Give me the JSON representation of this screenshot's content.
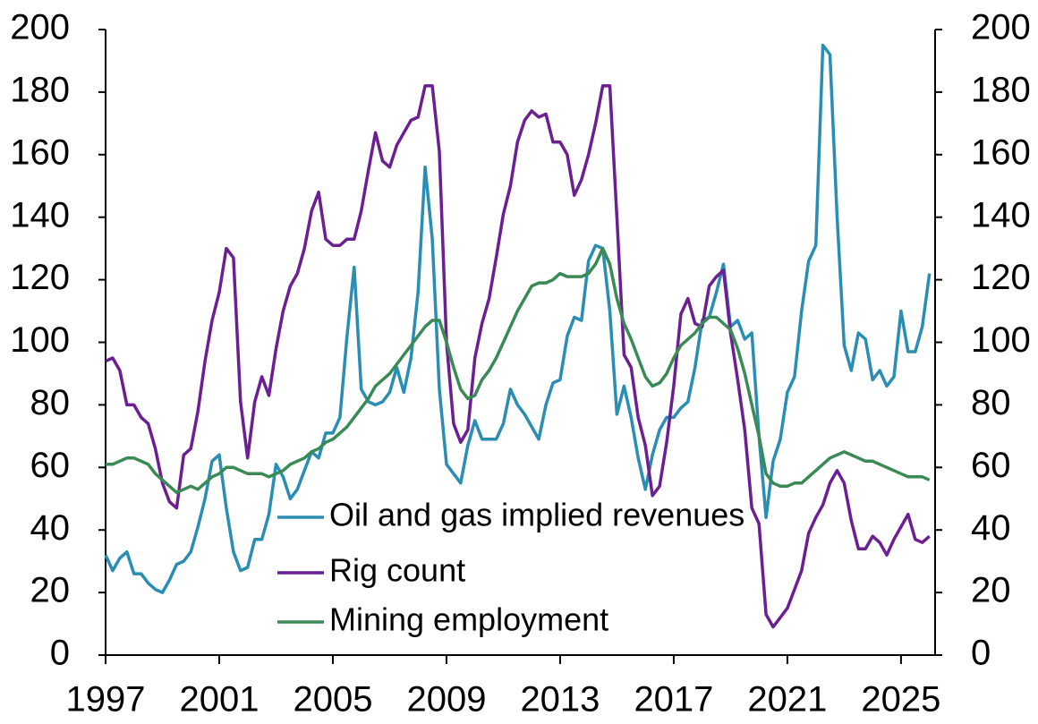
{
  "chart_data": {
    "type": "line",
    "x": [
      1997,
      1997.25,
      1997.5,
      1997.75,
      1998,
      1998.25,
      1998.5,
      1998.75,
      1999,
      1999.25,
      1999.5,
      1999.75,
      2000,
      2000.25,
      2000.5,
      2000.75,
      2001,
      2001.25,
      2001.5,
      2001.75,
      2002,
      2002.25,
      2002.5,
      2002.75,
      2003,
      2003.25,
      2003.5,
      2003.75,
      2004,
      2004.25,
      2004.5,
      2004.75,
      2005,
      2005.25,
      2005.5,
      2005.75,
      2006,
      2006.25,
      2006.5,
      2006.75,
      2007,
      2007.25,
      2007.5,
      2007.75,
      2008,
      2008.25,
      2008.5,
      2008.75,
      2009,
      2009.25,
      2009.5,
      2009.75,
      2010,
      2010.25,
      2010.5,
      2010.75,
      2011,
      2011.25,
      2011.5,
      2011.75,
      2012,
      2012.25,
      2012.5,
      2012.75,
      2013,
      2013.25,
      2013.5,
      2013.75,
      2014,
      2014.25,
      2014.5,
      2014.75,
      2015,
      2015.25,
      2015.5,
      2015.75,
      2016,
      2016.25,
      2016.5,
      2016.75,
      2017,
      2017.25,
      2017.5,
      2017.75,
      2018,
      2018.25,
      2018.5,
      2018.75,
      2019,
      2019.25,
      2019.5,
      2019.75,
      2020,
      2020.25,
      2020.5,
      2020.75,
      2021,
      2021.25,
      2021.5,
      2021.75,
      2022,
      2022.25,
      2022.5,
      2022.75,
      2023,
      2023.25,
      2023.5,
      2023.75,
      2024,
      2024.25,
      2024.5,
      2024.75,
      2025,
      2025.25,
      2025.5,
      2025.75,
      2026
    ],
    "series": [
      {
        "name": "Oil and gas implied revenues",
        "color": "#2a8db3",
        "values": [
          32,
          27,
          31,
          33,
          26,
          26,
          23,
          21,
          20,
          24,
          29,
          30,
          33,
          41,
          50,
          62,
          64,
          47,
          33,
          27,
          28,
          37,
          37,
          45,
          61,
          57,
          50,
          53,
          59,
          65,
          63,
          71,
          71,
          76,
          102,
          124,
          85,
          81,
          80,
          81,
          84,
          92,
          84,
          95,
          116,
          156,
          133,
          85,
          61,
          58,
          55,
          67,
          75,
          69,
          69,
          69,
          74,
          85,
          80,
          77,
          73,
          69,
          80,
          87,
          88,
          102,
          108,
          107,
          126,
          131,
          130,
          110,
          77,
          86,
          76,
          63,
          53,
          64,
          72,
          76,
          76,
          79,
          81,
          92,
          107,
          108,
          116,
          125,
          105,
          107,
          101,
          103,
          70,
          44,
          62,
          69,
          84,
          89,
          110,
          126,
          131,
          195,
          192,
          140,
          99,
          91,
          103,
          101,
          88,
          91,
          86,
          89,
          110,
          97,
          97,
          105,
          122
        ]
      },
      {
        "name": "Rig count",
        "color": "#6b1f93",
        "values": [
          94,
          95,
          91,
          80,
          80,
          76,
          74,
          66,
          55,
          49,
          47,
          64,
          66,
          78,
          94,
          107,
          116,
          130,
          127,
          81,
          63,
          81,
          89,
          83,
          98,
          110,
          118,
          122,
          130,
          142,
          148,
          133,
          131,
          131,
          133,
          133,
          142,
          155,
          167,
          158,
          156,
          163,
          167,
          171,
          172,
          182,
          182,
          161,
          100,
          74,
          68,
          72,
          95,
          106,
          114,
          127,
          141,
          150,
          164,
          171,
          174,
          172,
          173,
          164,
          164,
          160,
          147,
          152,
          160,
          170,
          182,
          182,
          140,
          96,
          92,
          76,
          67,
          51,
          54,
          68,
          86,
          109,
          114,
          106,
          105,
          118,
          121,
          123,
          103,
          88,
          72,
          47,
          42,
          13,
          9,
          12,
          15,
          21,
          27,
          39,
          44,
          48,
          55,
          59,
          55,
          43,
          34,
          34,
          38,
          36,
          32,
          37,
          41,
          45,
          37,
          36,
          38
        ]
      },
      {
        "name": "Mining employment",
        "color": "#3a8a55",
        "values": [
          61,
          61,
          62,
          63,
          63,
          62,
          61,
          58,
          56,
          54,
          52,
          53,
          54,
          53,
          55,
          57,
          58,
          60,
          60,
          59,
          58,
          58,
          58,
          57,
          58,
          59,
          61,
          62,
          63,
          65,
          66,
          68,
          69,
          71,
          73,
          76,
          79,
          82,
          86,
          88,
          90,
          93,
          96,
          99,
          102,
          105,
          107,
          107,
          100,
          92,
          85,
          82,
          83,
          88,
          91,
          95,
          100,
          105,
          110,
          114,
          118,
          119,
          119,
          120,
          122,
          121,
          121,
          121,
          122,
          125,
          130,
          125,
          114,
          106,
          101,
          95,
          89,
          86,
          87,
          90,
          95,
          99,
          101,
          103,
          106,
          108,
          108,
          106,
          104,
          98,
          90,
          80,
          70,
          58,
          55,
          54,
          54,
          55,
          55,
          57,
          59,
          61,
          63,
          64,
          65,
          64,
          63,
          62,
          62,
          61,
          60,
          59,
          58,
          57,
          57,
          57,
          56
        ]
      }
    ],
    "xlim": [
      1997,
      2026.2
    ],
    "xticks": [
      1997,
      2001,
      2005,
      2009,
      2013,
      2017,
      2021,
      2025
    ],
    "ylim": [
      0,
      200
    ],
    "yticks": [
      0,
      20,
      40,
      60,
      80,
      100,
      120,
      140,
      160,
      180,
      200
    ],
    "y2lim": [
      0,
      200
    ],
    "y2ticks": [
      0,
      20,
      40,
      60,
      80,
      100,
      120,
      140,
      160,
      180,
      200
    ]
  }
}
